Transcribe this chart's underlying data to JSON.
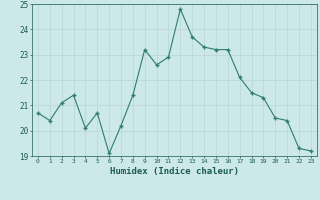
{
  "x": [
    0,
    1,
    2,
    3,
    4,
    5,
    6,
    7,
    8,
    9,
    10,
    11,
    12,
    13,
    14,
    15,
    16,
    17,
    18,
    19,
    20,
    21,
    22,
    23
  ],
  "y": [
    20.7,
    20.4,
    21.1,
    21.4,
    20.1,
    20.7,
    19.1,
    20.2,
    21.4,
    23.2,
    22.6,
    22.9,
    24.8,
    23.7,
    23.3,
    23.2,
    23.2,
    22.1,
    21.5,
    21.3,
    20.5,
    20.4,
    19.3,
    19.2
  ],
  "line_color": "#2e7d6e",
  "marker_color": "#2e7d6e",
  "bg_color": "#cce8e8",
  "grid_color": "#b8d4d4",
  "axis_label_color": "#1a5c52",
  "tick_color": "#1a5c52",
  "xlabel": "Humidex (Indice chaleur)",
  "ylim": [
    19,
    25
  ],
  "xlim": [
    -0.5,
    23.5
  ],
  "yticks": [
    19,
    20,
    21,
    22,
    23,
    24,
    25
  ],
  "xticks": [
    0,
    1,
    2,
    3,
    4,
    5,
    6,
    7,
    8,
    9,
    10,
    11,
    12,
    13,
    14,
    15,
    16,
    17,
    18,
    19,
    20,
    21,
    22,
    23
  ]
}
